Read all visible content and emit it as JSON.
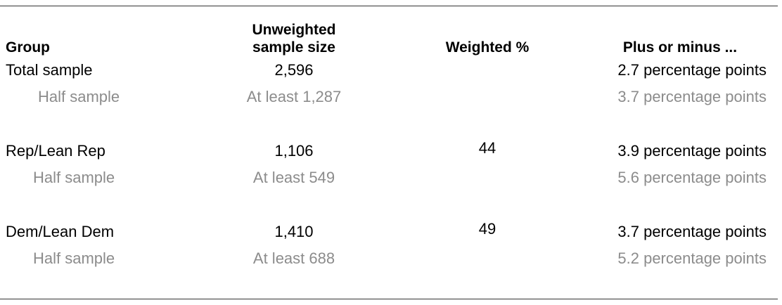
{
  "header": {
    "group": "Group",
    "unweighted": [
      "Unweighted",
      "sample size"
    ],
    "weighted": "Weighted %",
    "plus_minus": "Plus or minus ..."
  },
  "groups": [
    {
      "group": "Total sample",
      "unweighted": "2,596",
      "plus_minus": "2.7 percentage points",
      "half": {
        "group": "Half sample",
        "unweighted": "At least 1,287",
        "plus_minus": "3.7 percentage points"
      }
    },
    {
      "group": "Rep/Lean Rep",
      "unweighted": "1,106",
      "weighted": 44,
      "plus_minus": "3.9 percentage points",
      "half": {
        "group": "Half sample",
        "unweighted": "At least 549",
        "plus_minus": "5.6 percentage points"
      }
    },
    {
      "group": "Dem/Lean Dem",
      "unweighted": "1,410",
      "weighted": 49,
      "plus_minus": "3.7 percentage points",
      "half": {
        "group": "Half sample",
        "unweighted": "At least 688",
        "plus_minus": "5.2 percentage points"
      }
    }
  ]
}
